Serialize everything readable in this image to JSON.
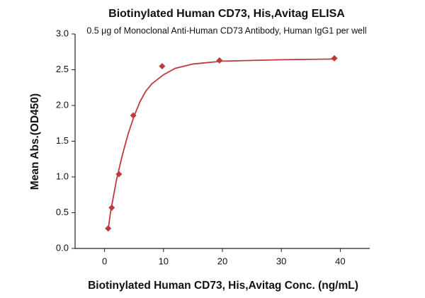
{
  "chart_data": {
    "type": "scatter",
    "title": "Biotinylated Human CD73, His,Avitag ELISA",
    "subtitle": "0.5 μg of Monoclonal Anti-Human CD73 Antibody, Human IgG1 per well",
    "xlabel": "Biotinylated Human CD73, His,Avitag Conc. (ng/mL)",
    "ylabel": "Mean Abs.(OD450)",
    "series": [
      {
        "style": "points",
        "color": "#c0393b",
        "x": [
          0.61,
          1.22,
          2.44,
          4.88,
          9.77,
          19.5,
          39
        ],
        "values": [
          0.28,
          0.57,
          1.04,
          1.86,
          2.55,
          2.63,
          2.66
        ]
      },
      {
        "style": "line",
        "color": "#c0393b",
        "x": [
          0.6,
          1,
          2,
          3,
          4,
          5,
          6,
          7,
          8,
          10,
          12,
          15,
          20,
          30,
          39
        ],
        "values": [
          0.25,
          0.5,
          0.95,
          1.3,
          1.6,
          1.85,
          2.05,
          2.2,
          2.3,
          2.43,
          2.52,
          2.58,
          2.62,
          2.64,
          2.65
        ]
      }
    ],
    "xlim": [
      -5,
      45
    ],
    "xticks": [
      0,
      10,
      20,
      30,
      40
    ],
    "ylim": [
      0,
      3
    ],
    "yticks": [
      {
        "value": 0,
        "label": "0.0"
      },
      {
        "value": 0.5,
        "label": "0.5"
      },
      {
        "value": 1,
        "label": "1.0"
      },
      {
        "value": 1.5,
        "label": "1.5"
      },
      {
        "value": 2,
        "label": "2.0"
      },
      {
        "value": 2.5,
        "label": "2.5"
      },
      {
        "value": 3,
        "label": "3.0"
      }
    ],
    "grid": false
  }
}
